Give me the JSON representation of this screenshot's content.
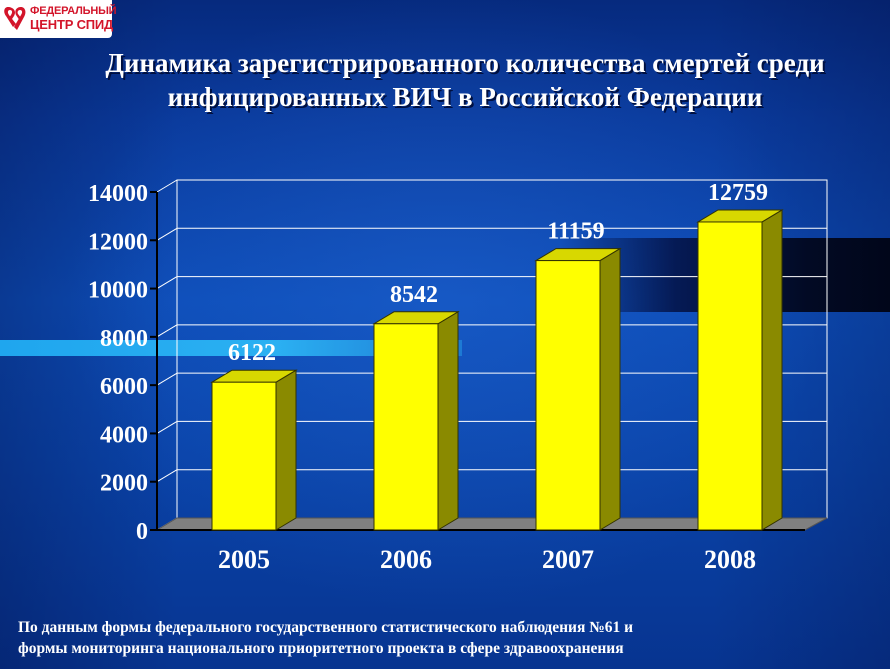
{
  "logo": {
    "line1": "ФЕДЕРАЛЬНЫЙ",
    "line2": "ЦЕНТР СПИД",
    "icon": "red-ribbon-icon",
    "color": "#d3152a"
  },
  "title": {
    "line1": "Динамика зарегистрированного количества смертей среди",
    "line2": "инфицированных ВИЧ в Российской Федерации"
  },
  "footnote": {
    "line1": "По данным формы федерального государственного статистического наблюдения №61 и",
    "line2": "формы мониторинга национального приоритетного проекта в сфере здравоохранения"
  },
  "chart_data": {
    "type": "bar",
    "style": "3d-column",
    "categories": [
      "2005",
      "2006",
      "2007",
      "2008"
    ],
    "values": [
      6122,
      8542,
      11159,
      12759
    ],
    "data_labels": [
      "6122",
      "8542",
      "11159",
      "12759"
    ],
    "yticks": [
      "0",
      "2000",
      "4000",
      "6000",
      "8000",
      "10000",
      "12000",
      "14000"
    ],
    "ylim": [
      0,
      14000
    ],
    "grid": true,
    "bar_color": "#ffff00",
    "bar_side_color": "#8a8a00",
    "bar_top_color": "#d8d800",
    "floor_color": "#808080",
    "axis_color": "#000000",
    "grid_color": "#ffffff"
  }
}
